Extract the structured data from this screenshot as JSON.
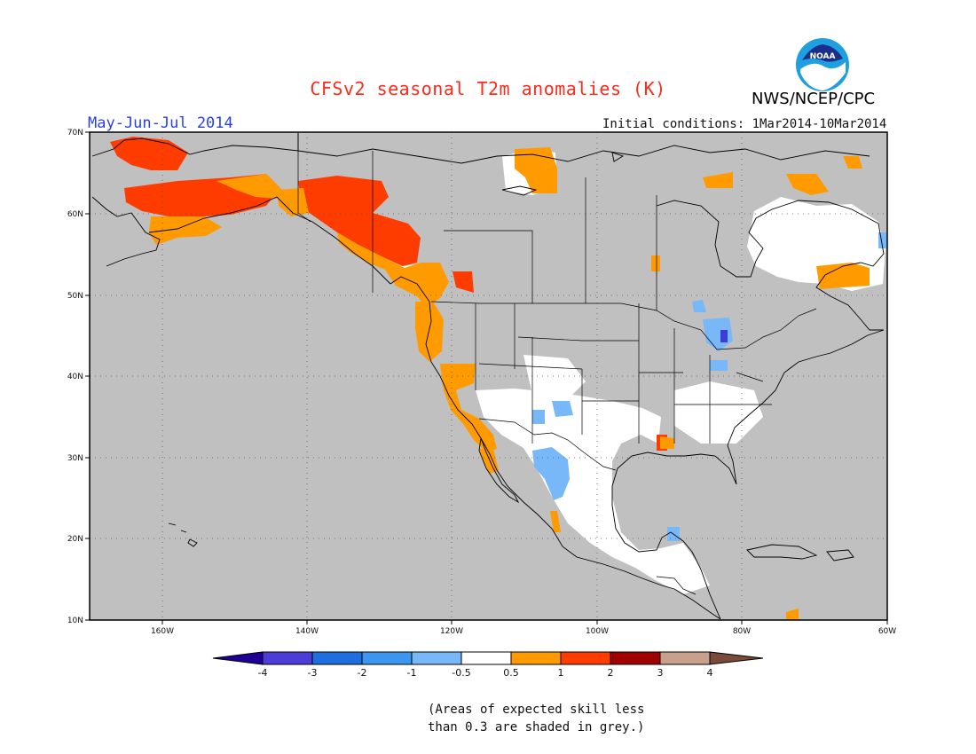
{
  "header": {
    "title": "CFSv2 seasonal T2m anomalies (K)",
    "period": "May-Jun-Jul 2014",
    "initial_conditions": "Initial conditions: 1Mar2014-10Mar2014",
    "agency": "NWS/NCEP/CPC",
    "logo_text": "NOAA"
  },
  "map": {
    "projection": "equirectangular",
    "lon_range": [
      -170,
      -60
    ],
    "lat_range": [
      10,
      70
    ],
    "background_color": "#c0c0c0",
    "lat_labels": [
      "70N",
      "60N",
      "50N",
      "40N",
      "30N",
      "20N",
      "10N"
    ],
    "lon_labels": [
      "160W",
      "140W",
      "120W",
      "100W",
      "80W",
      "60W"
    ],
    "grid": "dotted",
    "regions": [
      {
        "level": "0.5 to 1",
        "color": "#ff9b00",
        "area": "Alaska interior / south coast"
      },
      {
        "level": "1 to 2",
        "color": "#ff3c00",
        "area": "Alaska, Yukon, northern British Columbia"
      },
      {
        "level": "0.5 to 1",
        "color": "#ff9b00",
        "area": "Pacific Northwest coast, California, Baja"
      },
      {
        "level": "-0.5 to 0.5",
        "color": "#ffffff",
        "area": "Mexico, southern US, Quebec"
      },
      {
        "level": "-1 to -0.5",
        "color": "#77b8f8",
        "area": "Sierra Madre Occidental, New Mexico, Great Lakes"
      },
      {
        "level": "-3 to -2",
        "color": "#3c3cd8",
        "area": "Lower Michigan"
      },
      {
        "level": "0.5 to 1",
        "color": "#ff9b00",
        "area": "Nunavut, Baffin, Labrador"
      }
    ]
  },
  "colorbar": {
    "labels": [
      "-4",
      "-3",
      "-2",
      "-1",
      "-0.5",
      "0.5",
      "1",
      "2",
      "3",
      "4"
    ],
    "colors": [
      "#1e0096",
      "#4c3cd8",
      "#1e6ee0",
      "#3c96f0",
      "#78b8f8",
      "#ffffff",
      "#ff9b00",
      "#ff3c00",
      "#a00000",
      "#c8a08c",
      "#7a4a3a"
    ]
  },
  "footnote": {
    "line1": "(Areas of expected skill less",
    "line2": "than 0.3 are shaded in grey.)"
  }
}
